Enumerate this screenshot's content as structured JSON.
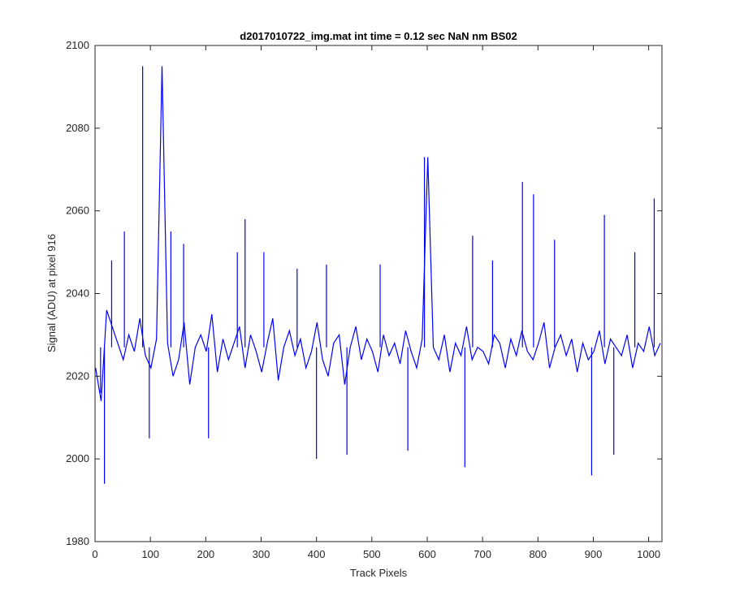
{
  "chart_data": {
    "type": "line",
    "title": "d2017010722_img.mat int time = 0.12 sec  NaN nm BS02",
    "xlabel": "Track Pixels",
    "ylabel": "Signal (ADU) at pixel 916",
    "xlim": [
      0,
      1024
    ],
    "ylim": [
      1980,
      2100
    ],
    "xticks": [
      0,
      100,
      200,
      300,
      400,
      500,
      600,
      700,
      800,
      900,
      1000
    ],
    "yticks": [
      1980,
      2000,
      2020,
      2040,
      2060,
      2080,
      2100
    ],
    "grid": false,
    "box": true,
    "line_color": "#0000ff",
    "series": [
      {
        "x_start": 1,
        "x_step": 10,
        "values": [
          2022,
          2014,
          2036,
          2032,
          2028,
          2024,
          2030,
          2026,
          2034,
          2025,
          2022,
          2029,
          2095,
          2028,
          2020,
          2024,
          2033,
          2018,
          2027,
          2030,
          2026,
          2035,
          2021,
          2029,
          2024,
          2028,
          2032,
          2022,
          2030,
          2026,
          2021,
          2028,
          2034,
          2019,
          2027,
          2031,
          2025,
          2029,
          2022,
          2026,
          2033,
          2024,
          2020,
          2028,
          2030,
          2018,
          2027,
          2032,
          2024,
          2029,
          2026,
          2021,
          2030,
          2025,
          2028,
          2023,
          2031,
          2026,
          2022,
          2029,
          2073,
          2027,
          2024,
          2030,
          2021,
          2028,
          2025,
          2032,
          2024,
          2027,
          2026,
          2023,
          2030,
          2028,
          2022,
          2029,
          2025,
          2031,
          2026,
          2024,
          2028,
          2033,
          2022,
          2027,
          2030,
          2025,
          2029,
          2021,
          2028,
          2024,
          2026,
          2031,
          2023,
          2029,
          2027,
          2025,
          2030,
          2022,
          2028,
          2026,
          2032,
          2025,
          2028
        ],
        "peaks": [
          [
            10,
            2016
          ],
          [
            17,
            1994
          ],
          [
            30,
            2048
          ],
          [
            53,
            2055
          ],
          [
            86,
            2095
          ],
          [
            98,
            2005
          ],
          [
            137,
            2055
          ],
          [
            160,
            2052
          ],
          [
            205,
            2005
          ],
          [
            257,
            2050
          ],
          [
            271,
            2058
          ],
          [
            305,
            2050
          ],
          [
            365,
            2046
          ],
          [
            400,
            2000
          ],
          [
            418,
            2047
          ],
          [
            455,
            2001
          ],
          [
            515,
            2047
          ],
          [
            565,
            2002
          ],
          [
            595,
            2073
          ],
          [
            668,
            1998
          ],
          [
            682,
            2054
          ],
          [
            718,
            2048
          ],
          [
            772,
            2067
          ],
          [
            792,
            2064
          ],
          [
            830,
            2053
          ],
          [
            897,
            1996
          ],
          [
            920,
            2059
          ],
          [
            937,
            2001
          ],
          [
            975,
            2050
          ],
          [
            1010,
            2063
          ]
        ]
      }
    ]
  }
}
